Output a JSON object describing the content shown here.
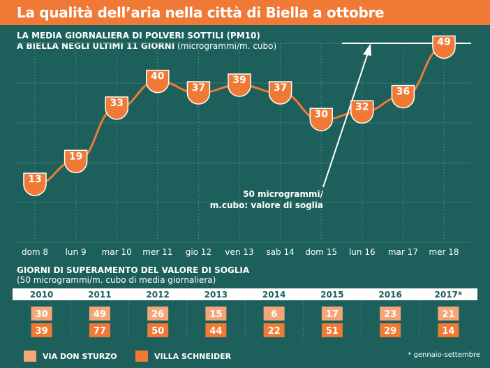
{
  "headline": "La qualità dell’aria nella città di Biella a ottobre",
  "chart_subtitle": {
    "line1": "LA MEDIA GIORNALIERA DI POLVERI SOTTILI (PM10)",
    "line2_bold": "A BIELLA NEGLI ULTIMI 11 GIORNI",
    "line2_rest": "(microgrammi/m. cubo)"
  },
  "annotation": {
    "line1": "50 microgrammi/",
    "line2": "m.cubo: valore di soglia"
  },
  "section2": {
    "title": "GIORNI DI SUPERAMENTO DEL VALORE DI SOGLIA",
    "subtitle": "(50 microgrammi/m. cubo di media giornaliera)"
  },
  "legend": {
    "via_don_sturzo": "VIA DON STURZO",
    "villa_schneider": "VILLA SCHNEIDER"
  },
  "footnote": "* gennaio-settembre",
  "colors": {
    "background": "#1c5f5b",
    "accent": "#f07a35",
    "via_don_sturzo": "#f5a679",
    "villa_schneider": "#f07a35",
    "threshold": "#ffffff"
  },
  "chart_data": [
    {
      "type": "line",
      "categories": [
        "dom 8",
        "lun 9",
        "mar 10",
        "mer 11",
        "gio 12",
        "ven 13",
        "sab 14",
        "dom 15",
        "lun 16",
        "mar 17",
        "mer 18"
      ],
      "values": [
        13,
        19,
        33,
        40,
        37,
        39,
        37,
        30,
        32,
        36,
        49
      ],
      "ylim": [
        0,
        50
      ],
      "threshold": 50,
      "grid": "horizontal",
      "data_labels": true
    },
    {
      "type": "table",
      "columns": [
        "2010",
        "2011",
        "2012",
        "2013",
        "2014",
        "2015",
        "2016",
        "2017*"
      ],
      "series": [
        {
          "name": "VIA DON STURZO",
          "values": [
            30,
            49,
            26,
            15,
            6,
            17,
            23,
            21
          ]
        },
        {
          "name": "VILLA SCHNEIDER",
          "values": [
            39,
            77,
            50,
            44,
            22,
            51,
            29,
            14
          ]
        }
      ]
    }
  ]
}
